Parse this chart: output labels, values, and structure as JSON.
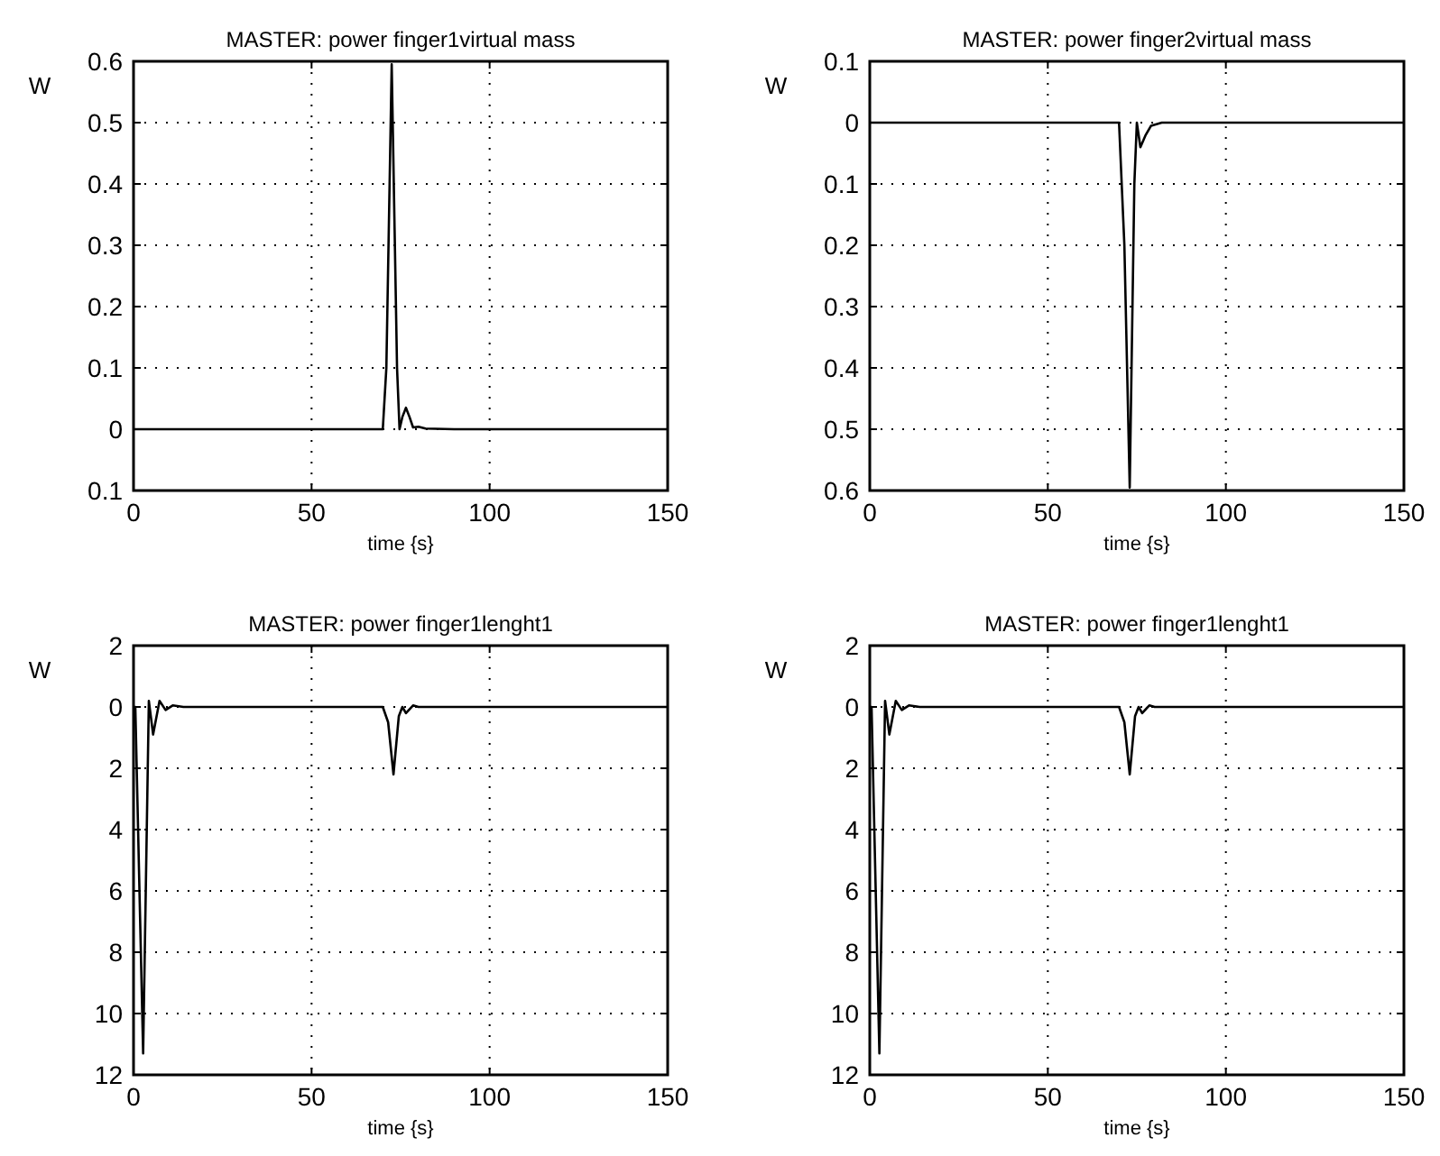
{
  "chart_data": [
    {
      "type": "line",
      "title": "MASTER: power finger1virtual mass",
      "xlabel": "time {s}",
      "ylabel": "W",
      "grid": true,
      "xlim": [
        0,
        150
      ],
      "xticks": [
        0,
        50,
        100,
        150
      ],
      "ylim": [
        -0.1,
        0.6
      ],
      "yticks": [
        {
          "value": -0.1,
          "label": "0.1"
        },
        0,
        0.1,
        0.2,
        0.3,
        0.4,
        0.5,
        0.6
      ],
      "series": [
        {
          "color": "#000000",
          "x": [
            0,
            70,
            71,
            72.5,
            74,
            74.7,
            75.5,
            76.5,
            77.5,
            78.5,
            80,
            82,
            90,
            150
          ],
          "values": [
            0,
            0,
            0.1,
            0.595,
            0.1,
            0,
            0.02,
            0.035,
            0.02,
            0.003,
            0.004,
            0.001,
            0,
            0
          ]
        }
      ]
    },
    {
      "type": "line",
      "title": "MASTER: power finger2virtual mass",
      "xlabel": "time {s}",
      "ylabel": "W",
      "grid": true,
      "xlim": [
        0,
        150
      ],
      "xticks": [
        0,
        50,
        100,
        150
      ],
      "ylim": [
        -0.6,
        0.1
      ],
      "yticks": [
        0.1,
        0,
        {
          "value": -0.1,
          "label": "0.1"
        },
        {
          "value": -0.2,
          "label": "0.2"
        },
        {
          "value": -0.3,
          "label": "0.3"
        },
        {
          "value": -0.4,
          "label": "0.4"
        },
        {
          "value": -0.5,
          "label": "0.5"
        },
        {
          "value": -0.6,
          "label": "0.6"
        }
      ],
      "series": [
        {
          "color": "#000000",
          "x": [
            0,
            70,
            71.5,
            73,
            74.3,
            75,
            76,
            77.5,
            79,
            82,
            150
          ],
          "values": [
            0,
            0,
            -0.2,
            -0.595,
            -0.1,
            0,
            -0.04,
            -0.02,
            -0.005,
            0,
            0
          ]
        }
      ]
    },
    {
      "type": "line",
      "title": "MASTER: power finger1lenght1",
      "xlabel": "time {s}",
      "ylabel": "W",
      "grid": true,
      "xlim": [
        0,
        150
      ],
      "xticks": [
        0,
        50,
        100,
        150
      ],
      "ylim": [
        -12,
        2
      ],
      "yticks": [
        2,
        0,
        {
          "value": -2,
          "label": "2"
        },
        {
          "value": -4,
          "label": "4"
        },
        {
          "value": -6,
          "label": "6"
        },
        {
          "value": -8,
          "label": "8"
        },
        {
          "value": -10,
          "label": "10"
        },
        {
          "value": -12,
          "label": "12"
        }
      ],
      "series": [
        {
          "color": "#000000",
          "x": [
            0,
            0.5,
            2.7,
            4.3,
            5.5,
            7.3,
            9,
            11,
            14,
            70,
            71.5,
            73,
            74.5,
            75.5,
            76.5,
            78.5,
            80,
            150
          ],
          "values": [
            0,
            0,
            -11.3,
            0.2,
            -0.9,
            0.2,
            -0.1,
            0.05,
            0,
            0,
            -0.5,
            -2.2,
            -0.3,
            0,
            -0.2,
            0.05,
            0,
            0
          ]
        }
      ]
    },
    {
      "type": "line",
      "title": "MASTER: power finger1lenght1",
      "xlabel": "time {s}",
      "ylabel": "W",
      "grid": true,
      "xlim": [
        0,
        150
      ],
      "xticks": [
        0,
        50,
        100,
        150
      ],
      "ylim": [
        -12,
        2
      ],
      "yticks": [
        2,
        0,
        {
          "value": -2,
          "label": "2"
        },
        {
          "value": -4,
          "label": "4"
        },
        {
          "value": -6,
          "label": "6"
        },
        {
          "value": -8,
          "label": "8"
        },
        {
          "value": -10,
          "label": "10"
        },
        {
          "value": -12,
          "label": "12"
        }
      ],
      "series": [
        {
          "color": "#000000",
          "x": [
            0,
            0.5,
            2.7,
            4.3,
            5.5,
            7.3,
            9,
            11,
            14,
            70,
            71.5,
            73,
            74.5,
            75.5,
            76.5,
            78.5,
            80,
            150
          ],
          "values": [
            0,
            0,
            -11.3,
            0.2,
            -0.9,
            0.2,
            -0.1,
            0.05,
            0,
            0,
            -0.5,
            -2.2,
            -0.3,
            0,
            -0.2,
            0.05,
            0,
            0
          ]
        }
      ]
    }
  ]
}
